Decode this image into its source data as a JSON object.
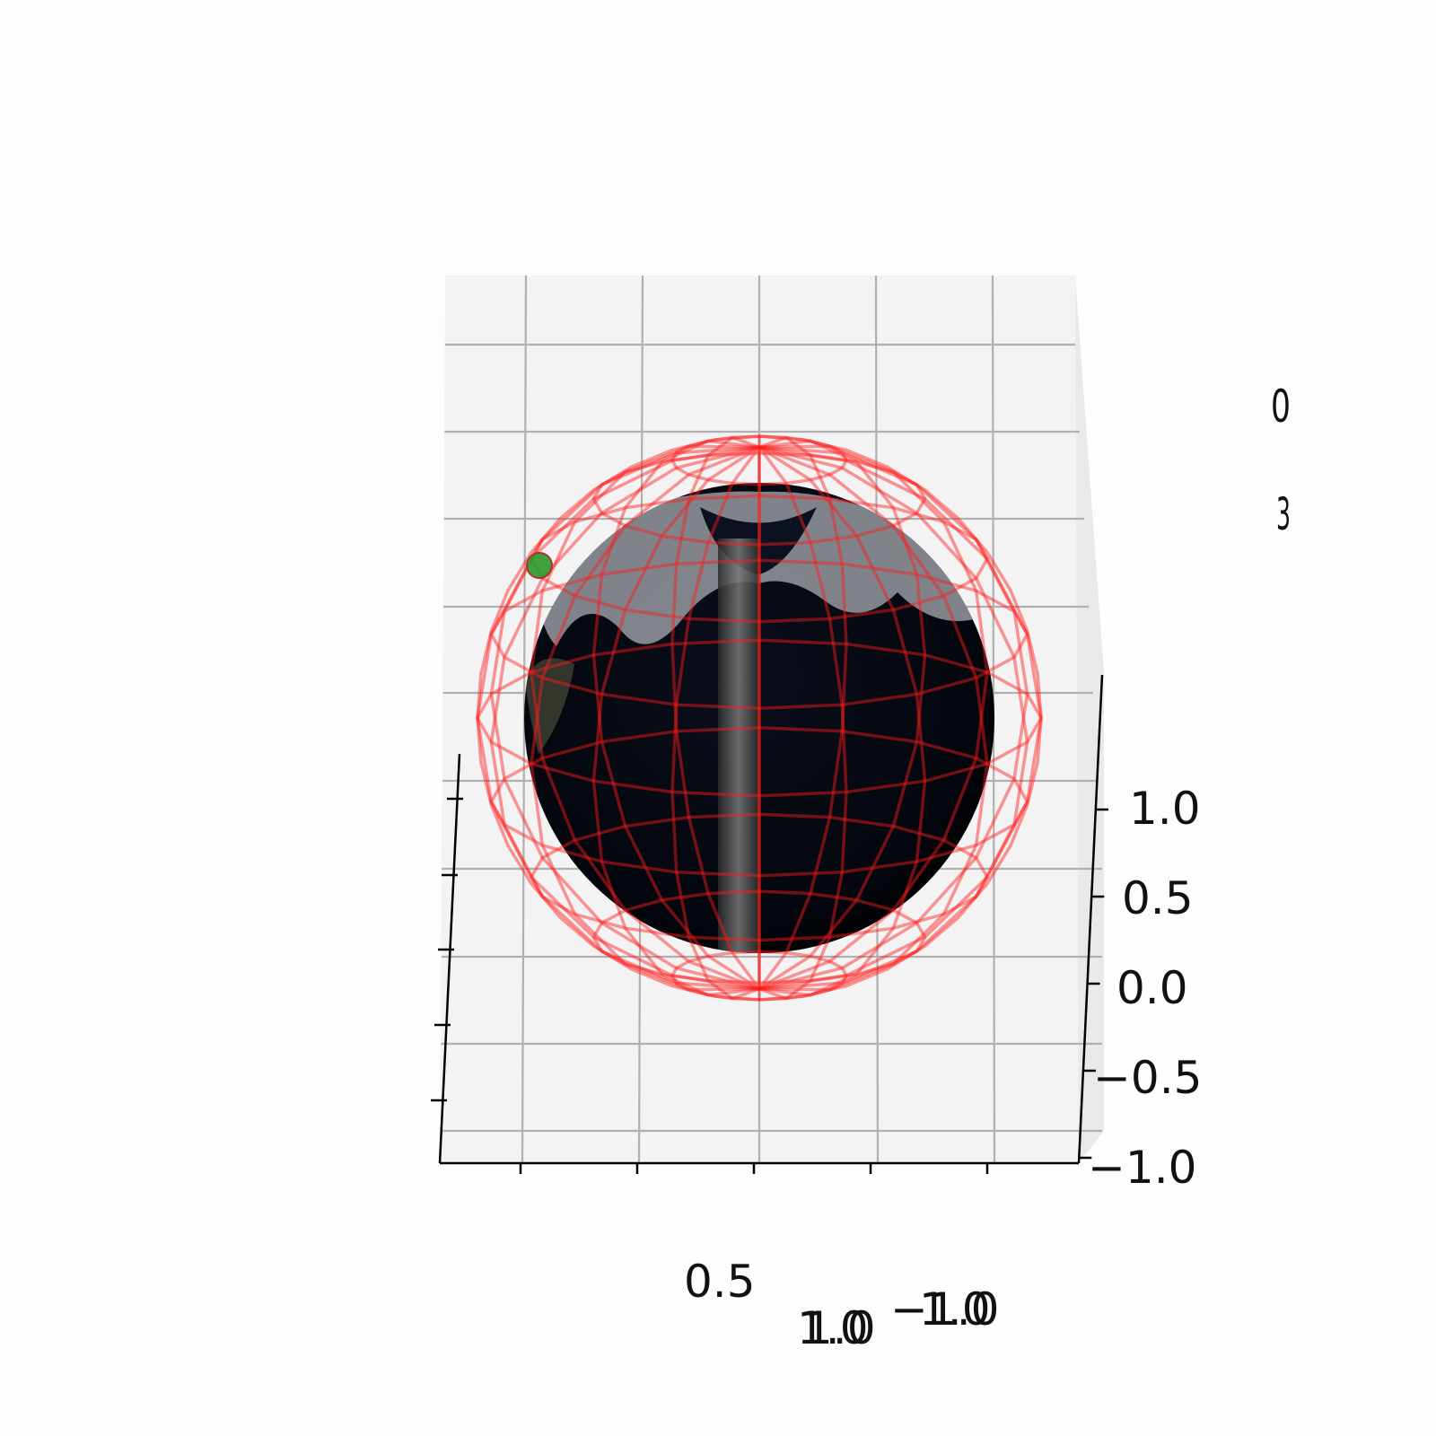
{
  "chart_data": {
    "type": "scatter",
    "projection": "3d",
    "z_axis": {
      "ticks": [
        1.0,
        0.5,
        0.0,
        -0.5,
        -1.0
      ],
      "tick_labels": [
        "1.0",
        "0.5",
        "0.0",
        "−0.5",
        "−1.0"
      ],
      "range": [
        -1.0,
        1.0
      ]
    },
    "x_axis": {
      "tick_count": 6,
      "label_fragments": [
        "0.5",
        "1.0",
        "1.0",
        "−1.0",
        "1.0"
      ]
    },
    "y_axis": {
      "tick_count": 5,
      "label_fragments": [
        "0",
        "3"
      ]
    },
    "grid": true,
    "surfaces": [
      {
        "name": "earth-sphere",
        "kind": "textured-sphere",
        "radius": 1.0,
        "colors": [
          "#03060d",
          "#c9ccd1",
          "#4a4a4a"
        ]
      },
      {
        "name": "wireframe-sphere",
        "kind": "wireframe",
        "radius": 1.2,
        "color": "#ff1a1a",
        "alpha": 0.4
      }
    ],
    "series": [
      {
        "kind": "point",
        "color": "#2a9a2a",
        "points": [
          {
            "x": -0.92,
            "y": 0.0,
            "z": 0.72
          }
        ]
      }
    ]
  }
}
